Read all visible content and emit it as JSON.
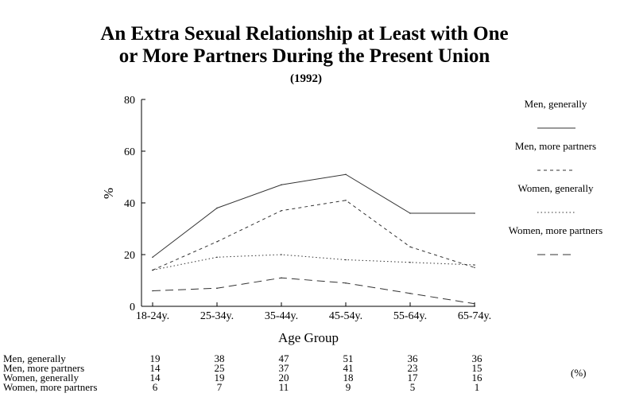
{
  "chart_data": {
    "type": "line",
    "title_line1": "An Extra Sexual Relationship at Least with One",
    "title_line2": "or More Partners During the Present Union",
    "subtitle": "(1992)",
    "xlabel": "Age Group",
    "ylabel": "%",
    "categories": [
      "18-24y.",
      "25-34y.",
      "35-44y.",
      "45-54y.",
      "55-64y.",
      "65-74y."
    ],
    "yticks": [
      0,
      20,
      40,
      60,
      80
    ],
    "ylim": [
      0,
      80
    ],
    "grid": false,
    "legend_position": "right",
    "series": [
      {
        "name": "Men, generally",
        "values": [
          19,
          38,
          47,
          51,
          36,
          36
        ],
        "dash": "solid"
      },
      {
        "name": "Men, more partners",
        "values": [
          14,
          25,
          37,
          41,
          23,
          15
        ],
        "dash": "dashed"
      },
      {
        "name": "Women, generally",
        "values": [
          14,
          19,
          20,
          18,
          17,
          16
        ],
        "dash": "dotted"
      },
      {
        "name": "Women, more partners",
        "values": [
          6,
          7,
          11,
          9,
          5,
          1
        ],
        "dash": "longdash"
      }
    ],
    "table_unit": "(%)",
    "line_color": "#333333"
  }
}
